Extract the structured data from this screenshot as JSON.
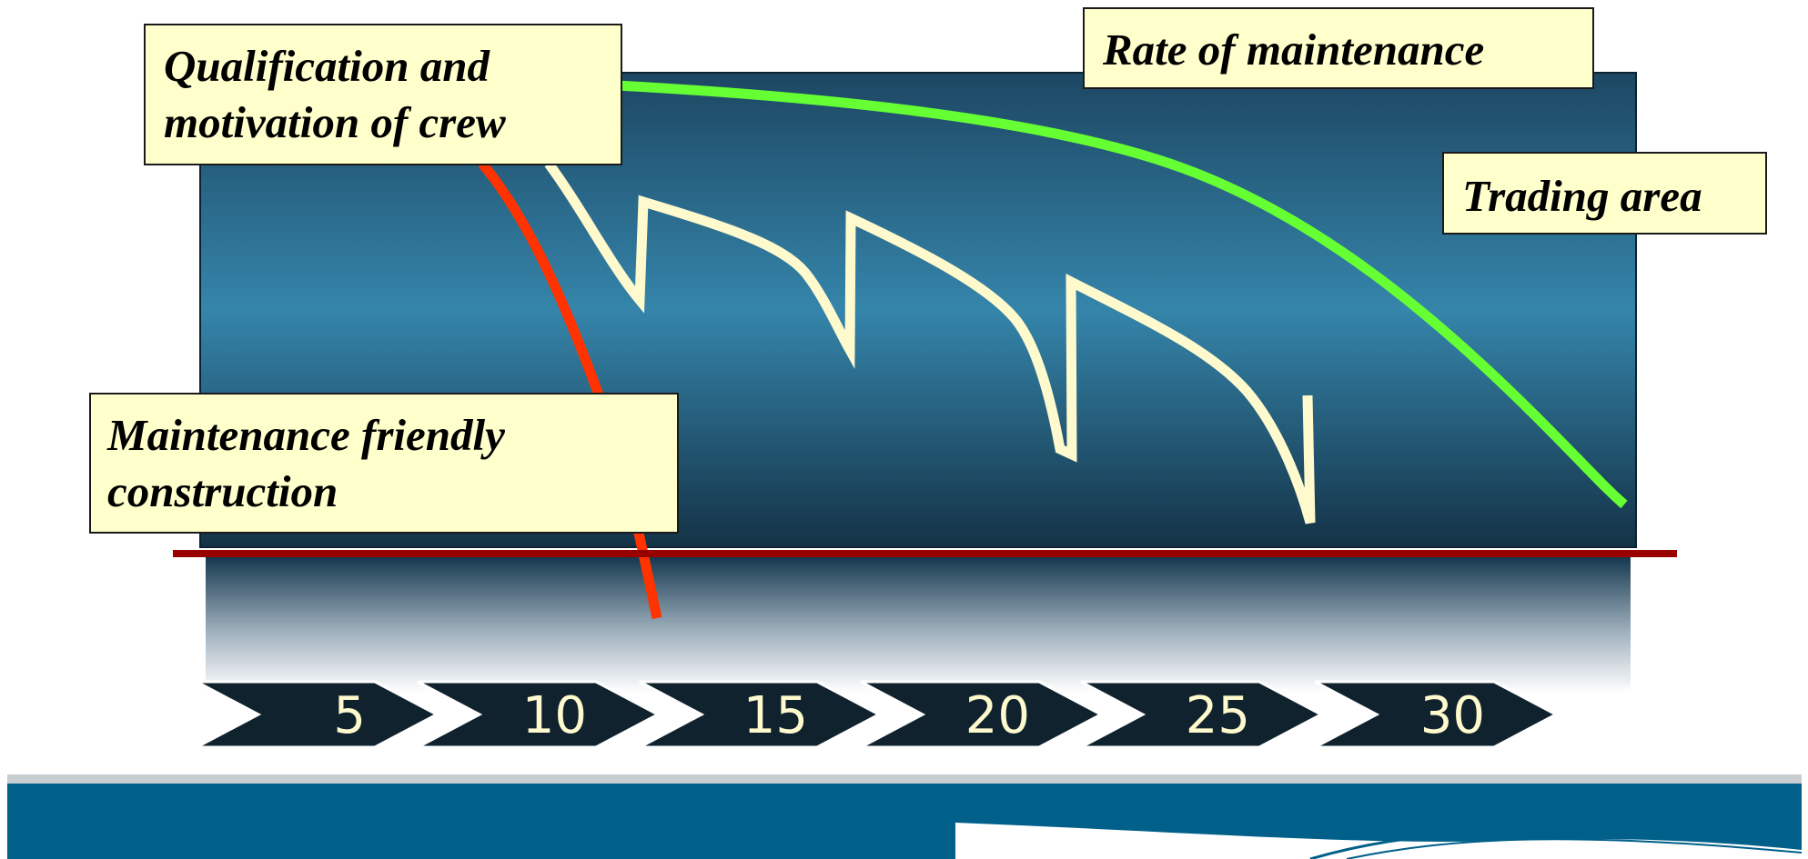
{
  "labels": {
    "crew": [
      "Qualification and",
      "motivation of crew"
    ],
    "rate": "Rate of maintenance",
    "trading": "Trading area",
    "construction": [
      "Maintenance friendly",
      "construction"
    ]
  },
  "timeline": {
    "ticks": [
      "5",
      "10",
      "15",
      "20",
      "25",
      "30"
    ]
  },
  "colors": {
    "panel_top": "#1f4a66",
    "panel_mid": "#3485ab",
    "panel_bottom": "#163448",
    "green_curve": "#66ff33",
    "red_curve": "#ff3300",
    "cream_curve": "#ffffcc",
    "baseline": "#990000",
    "chevron": "#10222e",
    "band": "#006089"
  }
}
